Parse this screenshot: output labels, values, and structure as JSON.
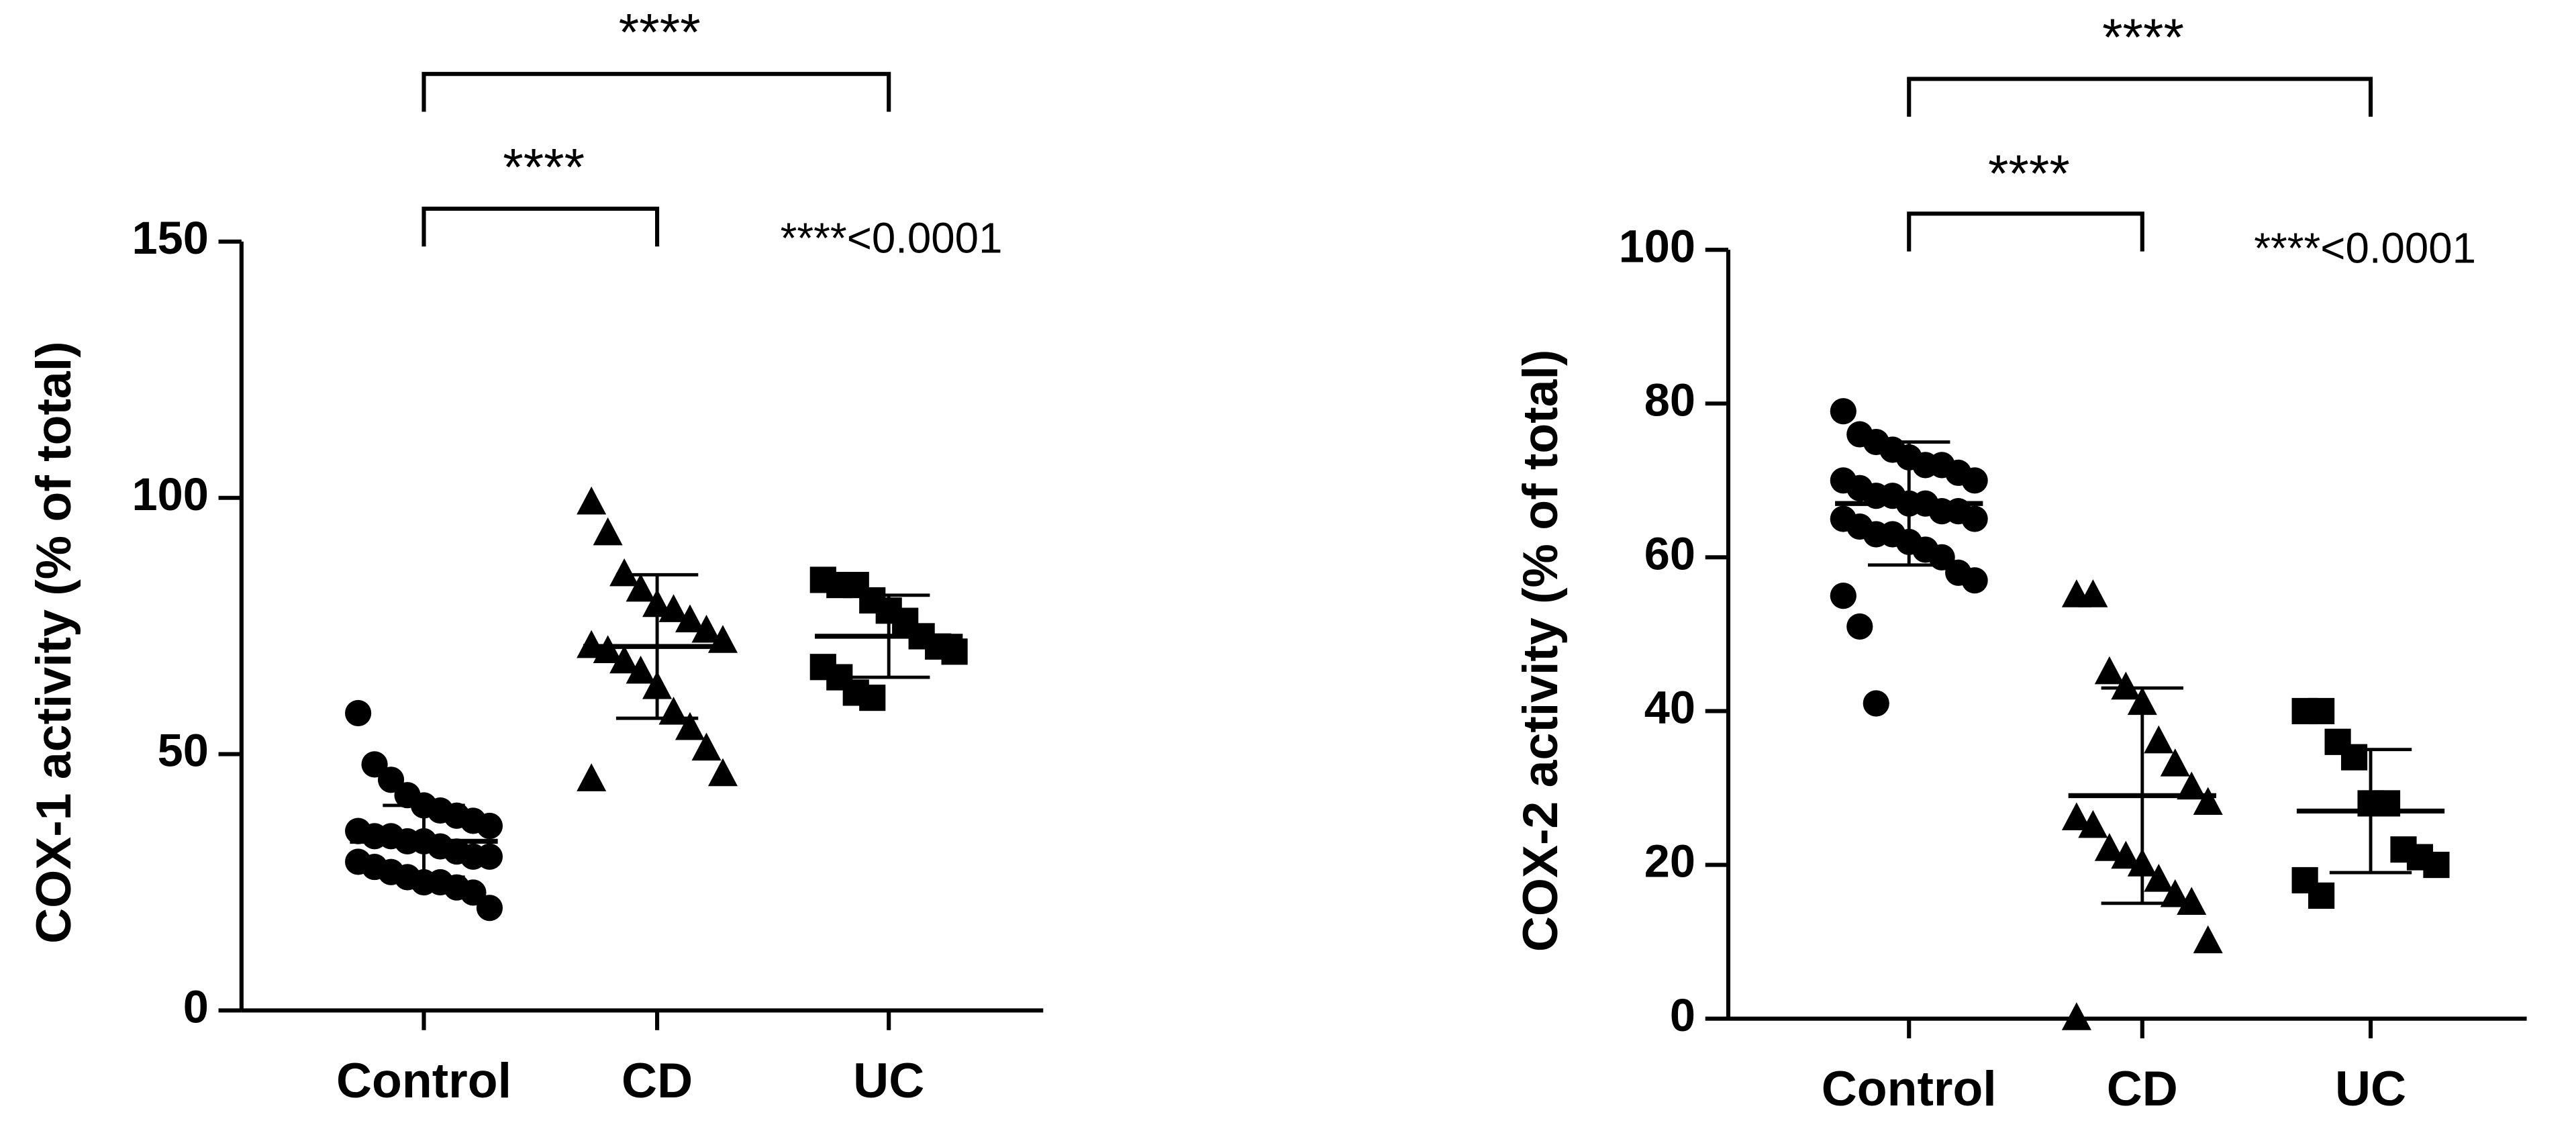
{
  "chart_data": [
    {
      "type": "dotplot",
      "y_label": "COX-1 activity (% of total)",
      "categories": [
        "Control",
        "CD",
        "UC"
      ],
      "ylim": [
        0,
        150
      ],
      "yticks": [
        0,
        50,
        100,
        150
      ],
      "color": "#000000",
      "groups": [
        {
          "marker": "circle",
          "values": [
            58,
            48,
            45,
            42,
            40,
            39,
            38,
            37,
            36,
            35,
            34,
            34,
            33,
            33,
            32,
            31,
            30,
            30,
            29,
            28,
            27,
            26,
            25,
            25,
            24,
            23,
            20
          ],
          "mean": 33,
          "sd": 7
        },
        {
          "marker": "triangle",
          "values": [
            99,
            93,
            85,
            82,
            79,
            78,
            76,
            74,
            72,
            71,
            70,
            68,
            66,
            63,
            58,
            55,
            51,
            46,
            45
          ],
          "mean": 71,
          "sd": 14
        },
        {
          "marker": "square",
          "values": [
            84,
            83,
            83,
            80,
            78,
            76,
            73,
            71,
            70,
            67,
            65,
            62,
            61
          ],
          "mean": 73,
          "sd": 8
        }
      ],
      "comparisons": [
        {
          "from": 0,
          "to": 2,
          "label": "****"
        },
        {
          "from": 0,
          "to": 1,
          "label": "****"
        }
      ],
      "note": "****<0.0001"
    },
    {
      "type": "dotplot",
      "y_label": "COX-2 activity (% of total)",
      "categories": [
        "Control",
        "CD",
        "UC"
      ],
      "ylim": [
        0,
        100
      ],
      "yticks": [
        0,
        20,
        40,
        60,
        80,
        100
      ],
      "color": "#000000",
      "groups": [
        {
          "marker": "circle",
          "values": [
            79,
            76,
            75,
            74,
            73,
            72,
            72,
            71,
            70,
            70,
            69,
            68,
            68,
            67,
            67,
            66,
            66,
            65,
            65,
            64,
            63,
            63,
            62,
            61,
            60,
            58,
            57,
            55,
            51,
            41
          ],
          "mean": 67,
          "sd": 8
        },
        {
          "marker": "triangle",
          "values": [
            55,
            55,
            45,
            43,
            41,
            36,
            33,
            30,
            28,
            26,
            25,
            22,
            21,
            20,
            18,
            16,
            15,
            10,
            0
          ],
          "mean": 29,
          "sd": 14
        },
        {
          "marker": "square",
          "values": [
            40,
            40,
            36,
            34,
            28,
            28,
            22,
            21,
            20,
            18,
            16
          ],
          "mean": 27,
          "sd": 8
        }
      ],
      "comparisons": [
        {
          "from": 0,
          "to": 2,
          "label": "****"
        },
        {
          "from": 0,
          "to": 1,
          "label": "****"
        }
      ],
      "note": "****<0.0001"
    }
  ]
}
